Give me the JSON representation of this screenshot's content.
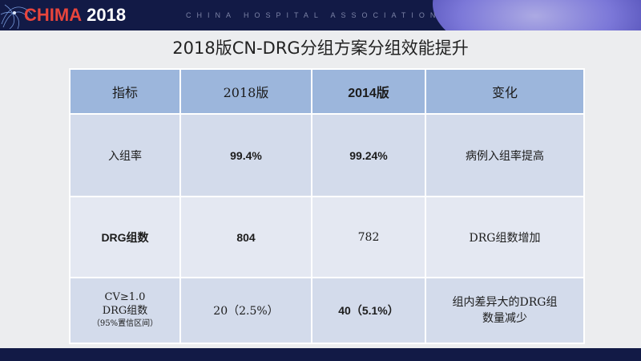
{
  "header": {
    "logo_text": "CHIMA",
    "logo_year": "2018",
    "association": "CHINA HOSPITAL ASSOCIATION"
  },
  "slide": {
    "title": "2018版CN-DRG分组方案分组效能提升"
  },
  "table": {
    "headers": [
      "指标",
      "2018版",
      "2014版",
      "变化"
    ],
    "rows": [
      {
        "metric": "入组率",
        "v2018": "99.4%",
        "v2014": "99.24%",
        "change": "病例入组率提高"
      },
      {
        "metric": "DRG组数",
        "v2018": "804",
        "v2014": "782",
        "change": "DRG组数增加"
      },
      {
        "metric_line1": "CV≥1.0",
        "metric_line2": "DRG组数",
        "metric_line3": "（95%置信区间）",
        "v2018": "20（2.5%）",
        "v2014": "40（5.1%）",
        "change": "组内差异大的DRG组数量减少"
      }
    ]
  },
  "colors": {
    "header_bg": "#121a46",
    "logo_red": "#e8453c",
    "table_head": "#9cb6dc",
    "row_dark": "#d3dbeb",
    "row_light": "#e4e8f2"
  }
}
